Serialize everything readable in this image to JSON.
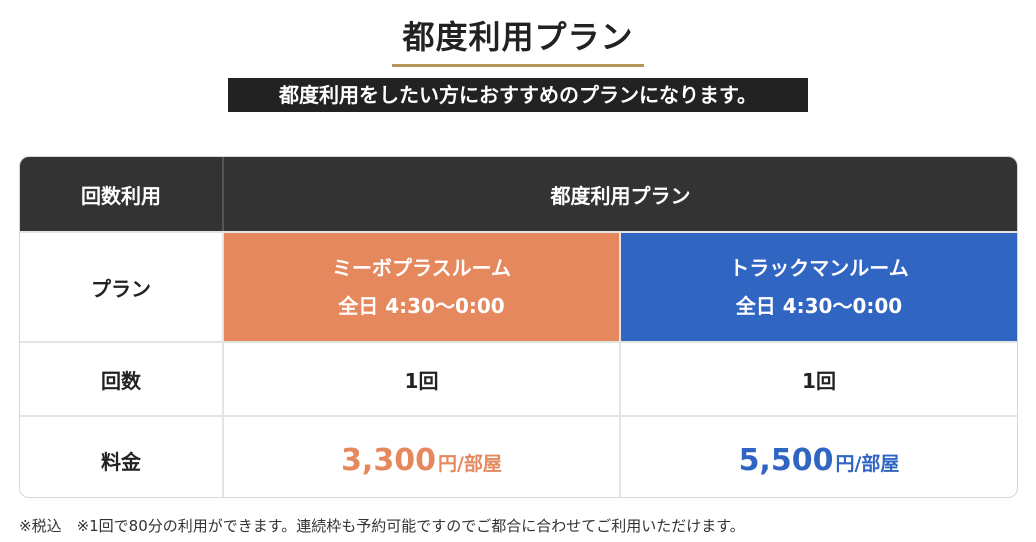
{
  "page": {
    "title": "都度利用プラン",
    "subtitle": "都度利用をしたい方におすすめのプランになります。"
  },
  "table": {
    "header": {
      "col1": "回数利用",
      "col2": "都度利用プラン"
    },
    "rows": {
      "plan": {
        "label": "プラン",
        "orange_name": "ミーボプラスルーム",
        "orange_time": "全日 4:30〜0:00",
        "blue_name": "トラックマンルーム",
        "blue_time": "全日 4:30〜0:00"
      },
      "count": {
        "label": "回数",
        "orange_value": "1回",
        "blue_value": "1回"
      },
      "price": {
        "label": "料金",
        "orange_amount": "3,300",
        "orange_unit": "円/部屋",
        "blue_amount": "5,500",
        "blue_unit": "円/部屋"
      }
    }
  },
  "footnote": "※税込　※1回で80分の利用ができます。連続枠も予約可能ですのでご都合に合わせてご利用いただけます。",
  "colors": {
    "accent_gold": "#b39659",
    "orange": "#e6885d",
    "blue": "#3165c2",
    "header_bg": "#333333"
  }
}
